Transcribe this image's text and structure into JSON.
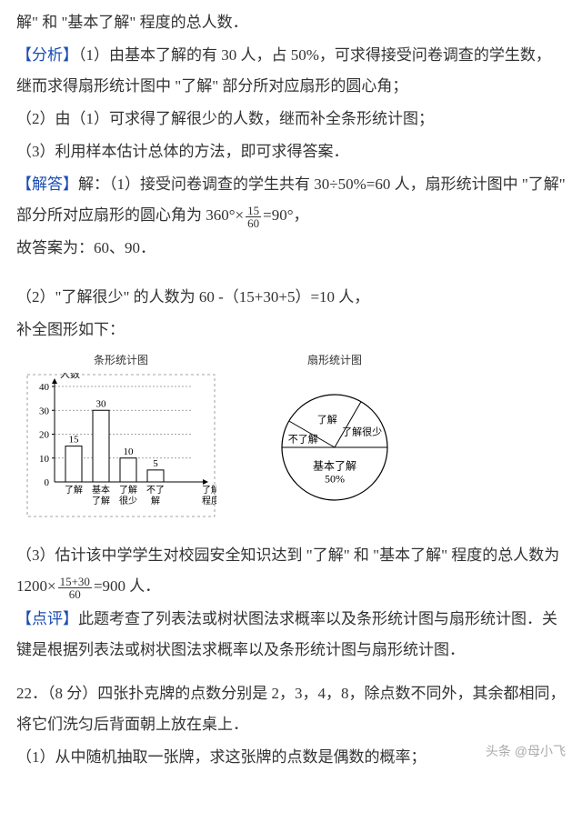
{
  "p1": "解\" 和 \"基本了解\" 程度的总人数．",
  "p2a": "【分析】",
  "p2b": "（1）由基本了解的有 30 人，占 50%，可求得接受问卷调查的学生数，继而求得扇形统计图中 \"了解\" 部分所对应扇形的圆心角；",
  "p3": "（2）由（1）可求得了解很少的人数，继而补全条形统计图；",
  "p4": "（3）利用样本估计总体的方法，即可求得答案．",
  "p5a": "【解答】",
  "p5b": "解：（1）接受问卷调查的学生共有 30÷50%=60 人，扇形统计图中 \"了解\" 部分所对应扇形的圆心角为 360°×",
  "p5c": "90°，",
  "f1num": "15",
  "f1den": "60",
  "p6": "故答案为：60、90．",
  "p7": "（2）\"了解很少\" 的人数为 60 -（15+30+5）=10 人，",
  "p8": "补全图形如下：",
  "barTitle": "条形统计图",
  "pieTitle": "扇形统计图",
  "ylabel": "人数",
  "xlabel": "了解程度",
  "cats": [
    "了解",
    "基本了解",
    "了解很少",
    "不了解"
  ],
  "vals": [
    15,
    30,
    10,
    5
  ],
  "yticks": [
    10,
    20,
    30,
    40
  ],
  "pieSlices": [
    "不了解",
    "了解",
    "了解很少",
    "基本了解"
  ],
  "piePct": "50%",
  "p9a": "（3）估计该中学学生对校园安全知识达到 \"了解\" 和 \"基本了解\" 程度的总人数为 1200×",
  "f2num": "15+30",
  "f2den": "60",
  "p9b": "=900 人．",
  "p10a": "【点评】",
  "p10b": "此题考查了列表法或树状图法求概率以及条形统计图与扇形统计图．关键是根据列表法或树状图法求概率以及条形统计图与扇形统计图．",
  "p11": "22．（8 分）四张扑克牌的点数分别是 2，3，4，8，除点数不同外，其余都相同，将它们洗匀后背面朝上放在桌上．",
  "p12": "（1）从中随机抽取一张牌，求这张牌的点数是偶数的概率；",
  "wm": "头条 @母小飞",
  "colors": {
    "text": "#333",
    "axis": "#000",
    "dash": "#555",
    "blue": "#1a4db3"
  }
}
